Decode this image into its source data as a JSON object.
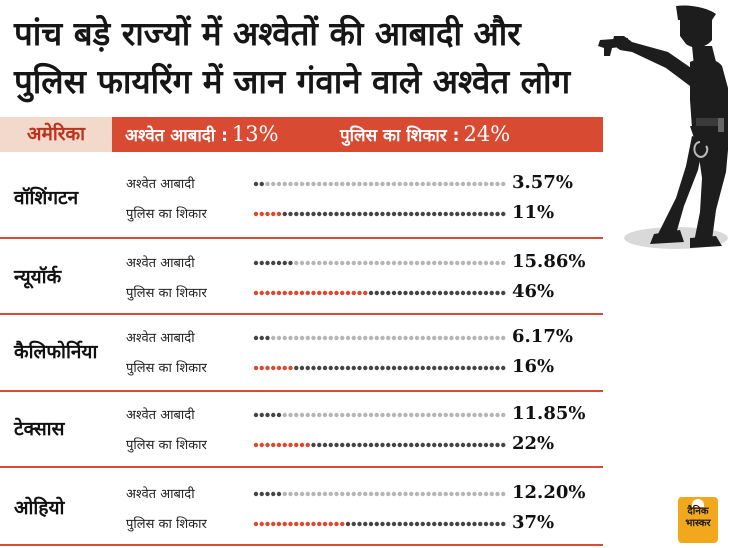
{
  "header": {
    "title_line1": "पांच बड़े राज्यों में अश्वेतों की आबादी और",
    "title_line2": "पुलिस फायरिंग में जान गंवाने वाले अश्वेत लोग"
  },
  "banner": {
    "country": "अमेरिका",
    "stat1_label": "अश्वेत आबादी :",
    "stat1_value": "13%",
    "stat2_label": "पुलिस का शिकार :",
    "stat2_value": "24%"
  },
  "row_labels": {
    "population": "अश्वेत आबादी",
    "police": "पुलिस का शिकार"
  },
  "brand": {
    "name": "दैनिक भास्कर"
  },
  "colors": {
    "accent": "#d94a32",
    "dot_active": "#e2452b",
    "dot_grey": "#444444",
    "dot_light": "#b5b5b5",
    "banner_country_bg": "#f3d9cc",
    "silhouette": "#1d1d1d",
    "brand_bg": "#f2a81d"
  },
  "icons": [
    "police-officer-silhouette-icon",
    "dainik-bhaskar-logo-icon"
  ],
  "chart_data": {
    "type": "dot-bar",
    "categories": [
      "वॉशिंगटन",
      "न्यूयॉर्क",
      "कैलिफोर्निया",
      "टेक्सास",
      "ओहियो"
    ],
    "series": [
      {
        "name": "अश्वेत आबादी",
        "values": [
          3.57,
          15.86,
          6.17,
          11.85,
          12.2
        ],
        "labels": [
          "3.57%",
          "15.86%",
          "6.17%",
          "11.85%",
          "12.20%"
        ]
      },
      {
        "name": "पुलिस का शिकार",
        "values": [
          11,
          46,
          16,
          22,
          37
        ],
        "labels": [
          "11%",
          "46%",
          "16%",
          "22%",
          "37%"
        ]
      }
    ],
    "national": {
      "अश्वेत आबादी": 13,
      "पुलिस का शिकार": 24
    },
    "ylim": [
      0,
      100
    ]
  }
}
